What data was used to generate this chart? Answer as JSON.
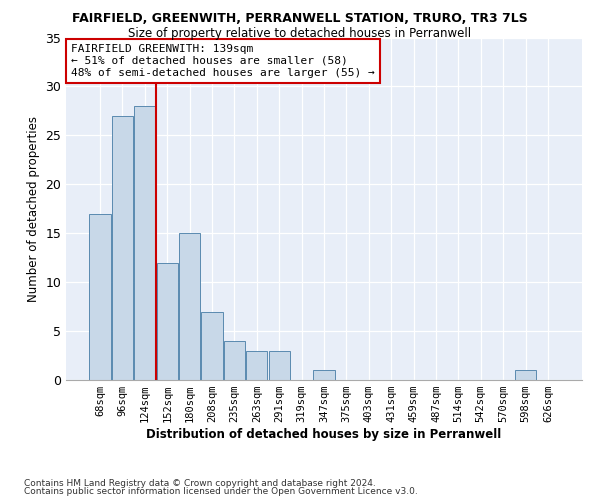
{
  "title": "FAIRFIELD, GREENWITH, PERRANWELL STATION, TRURO, TR3 7LS",
  "subtitle": "Size of property relative to detached houses in Perranwell",
  "xlabel": "Distribution of detached houses by size in Perranwell",
  "ylabel": "Number of detached properties",
  "bins": [
    "68sqm",
    "96sqm",
    "124sqm",
    "152sqm",
    "180sqm",
    "208sqm",
    "235sqm",
    "263sqm",
    "291sqm",
    "319sqm",
    "347sqm",
    "375sqm",
    "403sqm",
    "431sqm",
    "459sqm",
    "487sqm",
    "514sqm",
    "542sqm",
    "570sqm",
    "598sqm",
    "626sqm"
  ],
  "values": [
    17,
    27,
    28,
    12,
    15,
    7,
    4,
    3,
    3,
    0,
    1,
    0,
    0,
    0,
    0,
    0,
    0,
    0,
    0,
    1,
    0
  ],
  "bar_color": "#c8d8e8",
  "bar_edge_color": "#5a8ab0",
  "annotation_text": "FAIRFIELD GREENWITH: 139sqm\n← 51% of detached houses are smaller (58)\n48% of semi-detached houses are larger (55) →",
  "annotation_box_color": "#ffffff",
  "annotation_box_edge": "#cc0000",
  "vline_color": "#cc0000",
  "footer1": "Contains HM Land Registry data © Crown copyright and database right 2024.",
  "footer2": "Contains public sector information licensed under the Open Government Licence v3.0.",
  "bg_color": "#e8eef8",
  "ylim": [
    0,
    35
  ],
  "yticks": [
    0,
    5,
    10,
    15,
    20,
    25,
    30,
    35
  ]
}
